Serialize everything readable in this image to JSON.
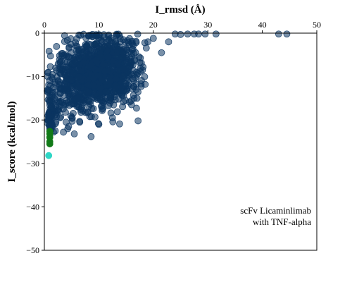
{
  "chart_data": {
    "type": "scatter",
    "xlabel": "I_rmsd (Å)",
    "ylabel": "I_score (kcal/mol)",
    "xlim": [
      0,
      50
    ],
    "ylim": [
      -50,
      0
    ],
    "x_axis_position": "top",
    "grid": false,
    "x_ticks": [
      "0",
      "10",
      "20",
      "30",
      "40",
      "50"
    ],
    "y_ticks": [
      "0",
      "−10",
      "−20",
      "−30",
      "−40",
      "−50"
    ],
    "annotation": [
      "scFv Licaminlimab",
      "with TNF-alpha"
    ],
    "annotation_placement": "bottom-right",
    "colors": {
      "decoys": "#0b3561",
      "near_native": "#127a18",
      "reference": "#2ed6c5"
    },
    "series": [
      {
        "color": "#0b3561",
        "opacity": 0.55,
        "clusters": [
          {
            "cx": 10.0,
            "cy": -9.5,
            "sx": 2.8,
            "sy": 3.8,
            "n": 700
          },
          {
            "cx": 6.0,
            "cy": -11.0,
            "sx": 2.2,
            "sy": 4.5,
            "n": 160
          },
          {
            "cx": 13.0,
            "cy": -5.0,
            "sx": 2.5,
            "sy": 3.0,
            "n": 160
          },
          {
            "cx": 3.0,
            "cy": -13.0,
            "sx": 1.6,
            "sy": 5.0,
            "n": 90
          },
          {
            "cx": 1.2,
            "cy": -19.0,
            "sx": 0.6,
            "sy": 2.5,
            "n": 50
          },
          {
            "cx": 15.0,
            "cy": -10.0,
            "sx": 1.7,
            "sy": 3.2,
            "n": 60
          }
        ],
        "points": [
          [
            20.0,
            -1.2
          ],
          [
            21.5,
            -4.5
          ],
          [
            22.8,
            -2.0
          ],
          [
            24.0,
            -0.2
          ],
          [
            25.0,
            -0.3
          ],
          [
            26.3,
            -0.2
          ],
          [
            27.5,
            -0.1
          ],
          [
            28.3,
            -0.1
          ],
          [
            29.5,
            -0.1
          ],
          [
            31.5,
            -0.2
          ],
          [
            43.0,
            -0.1
          ],
          [
            44.5,
            -0.1
          ],
          [
            17.2,
            -20.2
          ],
          [
            17.5,
            -6.8
          ],
          [
            19.0,
            -2.0
          ],
          [
            18.5,
            -11.8
          ],
          [
            17.0,
            -15.0
          ],
          [
            16.0,
            -16.5
          ],
          [
            2.0,
            -22.5
          ],
          [
            1.5,
            -21.5
          ],
          [
            3.5,
            -22.8
          ],
          [
            5.5,
            -23.2
          ],
          [
            6.5,
            -20.5
          ],
          [
            10.0,
            -21.0
          ],
          [
            12.5,
            -19.5
          ],
          [
            1.0,
            -22.0
          ],
          [
            0.8,
            -18.5
          ],
          [
            0.7,
            -20.0
          ],
          [
            4.0,
            -20.5
          ],
          [
            8.0,
            -18.2
          ]
        ]
      },
      {
        "color": "#127a18",
        "points": [
          [
            1.0,
            -25.5
          ],
          [
            1.0,
            -25.0
          ],
          [
            1.0,
            -24.0
          ],
          [
            1.0,
            -23.2
          ],
          [
            1.0,
            -22.6
          ]
        ]
      },
      {
        "color": "#2ed6c5",
        "points": [
          [
            0.8,
            -28.2
          ]
        ]
      }
    ]
  }
}
